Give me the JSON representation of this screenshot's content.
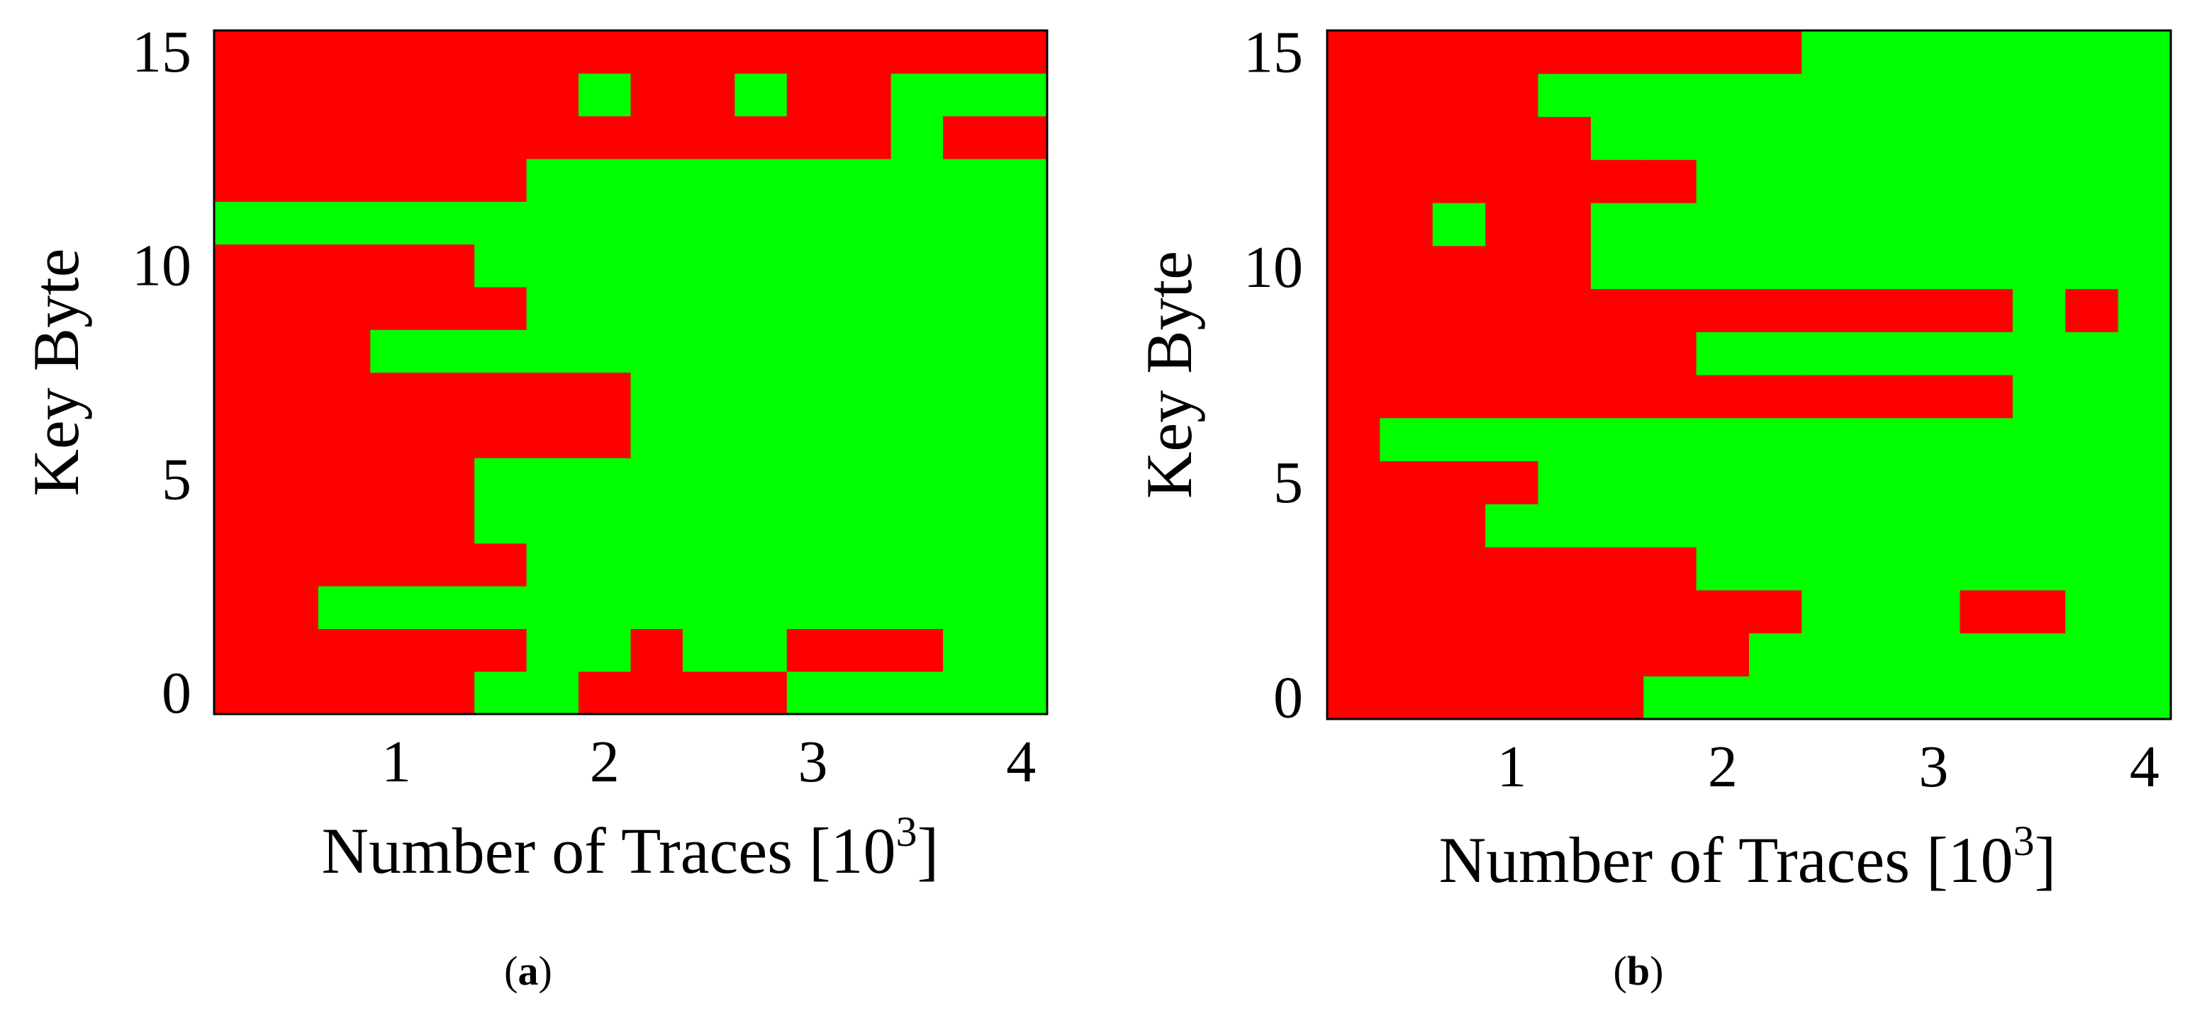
{
  "colors": {
    "success": "#00ff00",
    "failure": "#ff0000",
    "frame": "#000000"
  },
  "chart_data": [
    {
      "type": "heatmap",
      "caption": "(a)",
      "caption_letter": "a",
      "xlabel": "Number of Traces [10",
      "xlabel_sup": "3",
      "xlabel_end": "]",
      "ylabel": "Key Byte",
      "x": [
        250,
        500,
        750,
        1000,
        1250,
        1500,
        1750,
        2000,
        2250,
        2500,
        2750,
        3000,
        3250,
        3500,
        3750,
        4000
      ],
      "y": [
        0,
        1,
        2,
        3,
        4,
        5,
        6,
        7,
        8,
        9,
        10,
        11,
        12,
        13,
        14,
        15
      ],
      "xlim": [
        125,
        4125
      ],
      "ylim": [
        -0.5,
        15.5
      ],
      "xticks": [
        {
          "v": 1000,
          "label": "1"
        },
        {
          "v": 2000,
          "label": "2"
        },
        {
          "v": 3000,
          "label": "3"
        },
        {
          "v": 4000,
          "label": "4"
        }
      ],
      "yticks": [
        {
          "v": 0,
          "label": "0"
        },
        {
          "v": 5,
          "label": "5"
        },
        {
          "v": 10,
          "label": "10"
        },
        {
          "v": 15,
          "label": "15"
        }
      ],
      "value_legend": {
        "1": "green",
        "0": "red"
      },
      "rows": [
        "0000011000011111",
        "0000001101100011",
        "0011111111111111",
        "0000001111111111",
        "0000011111111111",
        "0000011111111111",
        "0000000011111111",
        "0000000011111111",
        "0001111111111111",
        "0000001111111111",
        "0000011111111111",
        "1111111111111111",
        "0000001111111111",
        "0000000000000100",
        "0000000100100111",
        "0000000000000000"
      ]
    },
    {
      "type": "heatmap",
      "caption": "(b)",
      "caption_letter": "b",
      "xlabel": "Number of Traces [10",
      "xlabel_sup": "3",
      "xlabel_end": "]",
      "ylabel": "Key Byte",
      "x": [
        250,
        500,
        750,
        1000,
        1250,
        1500,
        1750,
        2000,
        2250,
        2500,
        2750,
        3000,
        3250,
        3500,
        3750,
        4000
      ],
      "y": [
        0,
        1,
        2,
        3,
        4,
        5,
        6,
        7,
        8,
        9,
        10,
        11,
        12,
        13,
        14,
        15
      ],
      "xlim": [
        125,
        4125
      ],
      "ylim": [
        -0.5,
        15.5
      ],
      "xticks": [
        {
          "v": 1000,
          "label": "1"
        },
        {
          "v": 2000,
          "label": "2"
        },
        {
          "v": 3000,
          "label": "3"
        },
        {
          "v": 4000,
          "label": "4"
        }
      ],
      "yticks": [
        {
          "v": 0,
          "label": "0"
        },
        {
          "v": 5,
          "label": "5"
        },
        {
          "v": 10,
          "label": "10"
        },
        {
          "v": 15,
          "label": "15"
        }
      ],
      "value_legend": {
        "1": "green",
        "0": "red"
      },
      "rows": [
        "0000001111111111",
        "0000000011111111",
        "0000000001110011",
        "0000000111111111",
        "0001111111111111",
        "0000111111111111",
        "0111111111111111",
        "0000000000000111",
        "0000000111111111",
        "0000000000000101",
        "0000011111111111",
        "0010011111111111",
        "0000000111111111",
        "0000011111111111",
        "0000111111111111",
        "0000000001111111"
      ]
    }
  ]
}
